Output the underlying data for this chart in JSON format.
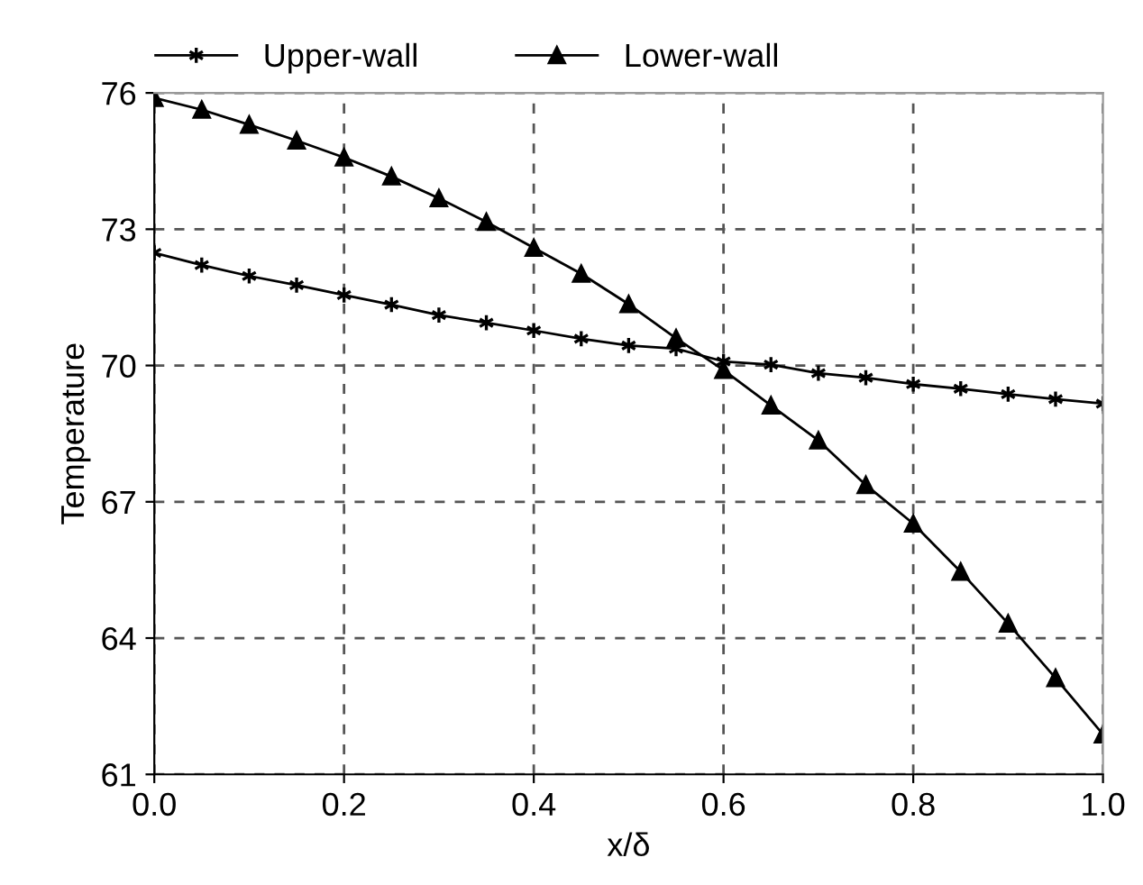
{
  "chart_data": {
    "type": "line",
    "xlabel": "x/δ",
    "ylabel": "Temperature",
    "x": [
      0,
      0.05,
      0.1,
      0.15,
      0.2,
      0.25,
      0.3,
      0.35,
      0.4,
      0.45,
      0.5,
      0.55,
      0.6,
      0.65,
      0.7,
      0.75,
      0.8,
      0.85,
      0.9,
      0.95,
      1.0
    ],
    "series": [
      {
        "name": "Upper-wall",
        "color": "#000000",
        "marker": "cross",
        "values": [
          72.48,
          72.21,
          71.97,
          71.77,
          71.55,
          71.34,
          71.11,
          70.94,
          70.77,
          70.59,
          70.44,
          70.37,
          70.09,
          70.02,
          69.83,
          69.73,
          69.59,
          69.49,
          69.37,
          69.26,
          69.16
        ]
      },
      {
        "name": "Lower-wall",
        "color": "#000000",
        "marker": "triangle",
        "values": [
          75.89,
          75.63,
          75.3,
          74.95,
          74.58,
          74.16,
          73.68,
          73.16,
          72.59,
          72.02,
          71.35,
          70.6,
          69.9,
          69.12,
          68.35,
          67.37,
          66.52,
          65.46,
          64.32,
          63.12,
          61.88
        ]
      }
    ],
    "xlim": [
      0,
      1.0
    ],
    "xticks": [
      {
        "value": 0,
        "label": "0.0"
      },
      0.2,
      0.4,
      0.6,
      0.8,
      {
        "value": 1.0,
        "label": "1.0"
      }
    ],
    "ylim": [
      61,
      76
    ],
    "yticks": [
      61,
      64,
      67,
      70,
      73,
      76
    ],
    "grid": true,
    "legend": "top",
    "line_style": "solid"
  }
}
